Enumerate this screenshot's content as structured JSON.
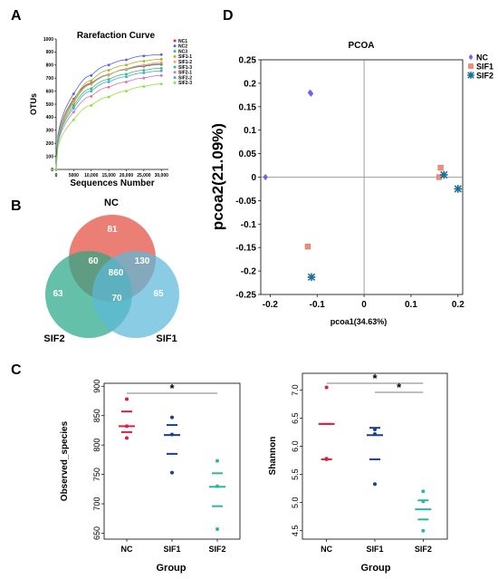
{
  "panels": {
    "A": "A",
    "B": "B",
    "C": "C",
    "D": "D"
  },
  "colors": {
    "NC1": "#e3243b",
    "NC2": "#5060f0",
    "NC3": "#20c0a8",
    "SIF1-1": "#b0b020",
    "SIF1-2": "#f0a070",
    "SIF1-3": "#30c070",
    "SIF2-1": "#e070a0",
    "SIF2-2": "#40a8e0",
    "SIF2-3": "#90e040",
    "venn_nc": "#e8675d",
    "venn_sif2": "#2aa888",
    "venn_sif1": "#5bb8d8",
    "pcoa_nc": "#7b5cf0",
    "pcoa_sif1": "#f08c78",
    "pcoa_sif2": "#1f6f98",
    "grp_nc": "#d9203c",
    "grp_sif1": "#1b3f94",
    "grp_sif2": "#2fb5a0"
  },
  "chart_data": [
    {
      "type": "line",
      "panel": "A",
      "title": "Rarefaction Curve",
      "xlabel": "Sequences Number",
      "ylabel": "OTUs",
      "xlim": [
        0,
        32000
      ],
      "ylim": [
        0,
        1000
      ],
      "x_ticks": [
        0,
        5000,
        10000,
        15000,
        20000,
        25000,
        30000
      ],
      "x_tick_labels": [
        "0",
        "5000",
        "10,000",
        "15,000",
        "20,000",
        "25,000",
        "30,000"
      ],
      "y_ticks": [
        0,
        100,
        200,
        300,
        400,
        500,
        600,
        700,
        800,
        900,
        1000
      ],
      "y_tick_labels": [
        "0",
        "100",
        "200",
        "300",
        "400",
        "500",
        "600",
        "700",
        "800",
        "900",
        "1000"
      ],
      "x": [
        0,
        5000,
        10000,
        15000,
        20000,
        25000,
        30000
      ],
      "series": [
        {
          "name": "NC1",
          "values": [
            0,
            540,
            660,
            725,
            765,
            790,
            805
          ]
        },
        {
          "name": "NC2",
          "values": [
            0,
            580,
            720,
            800,
            840,
            870,
            880
          ]
        },
        {
          "name": "NC3",
          "values": [
            0,
            520,
            655,
            725,
            765,
            795,
            810
          ]
        },
        {
          "name": "SIF1-1",
          "values": [
            0,
            530,
            680,
            760,
            800,
            830,
            845
          ]
        },
        {
          "name": "SIF1-2",
          "values": [
            0,
            510,
            650,
            720,
            770,
            800,
            820
          ]
        },
        {
          "name": "SIF1-3",
          "values": [
            0,
            490,
            620,
            690,
            730,
            760,
            775
          ]
        },
        {
          "name": "SIF2-1",
          "values": [
            0,
            440,
            560,
            630,
            670,
            700,
            720
          ]
        },
        {
          "name": "SIF2-2",
          "values": [
            0,
            470,
            600,
            670,
            710,
            740,
            755
          ]
        },
        {
          "name": "SIF2-3",
          "values": [
            0,
            380,
            490,
            555,
            600,
            635,
            655
          ]
        }
      ]
    },
    {
      "type": "venn",
      "panel": "B",
      "sets": [
        "NC",
        "SIF2",
        "SIF1"
      ],
      "regions": {
        "NC_only": "81",
        "SIF2_only": "63",
        "SIF1_only": "65",
        "NC_SIF2": "60",
        "NC_SIF1": "130",
        "SIF2_SIF1": "70",
        "all": "860"
      }
    },
    {
      "type": "scatter",
      "panel": "D",
      "title": "PCOA",
      "xlabel": "pcoa1(34.63%)",
      "ylabel": "pcoa2(21.09%)",
      "xlim": [
        -0.22,
        0.21
      ],
      "ylim": [
        -0.25,
        0.25
      ],
      "x_ticks": [
        -0.2,
        -0.1,
        0,
        0.1,
        0.2
      ],
      "x_tick_labels": [
        "-0.2",
        "-0.1",
        "0",
        "0.1",
        "0.2"
      ],
      "y_ticks": [
        0.25,
        0.2,
        0.15,
        0.1,
        0.05,
        0,
        -0.05,
        -0.1,
        -0.15,
        -0.2,
        -0.25
      ],
      "y_tick_labels": [
        "0.25",
        "0.2",
        "0.15",
        "0.1",
        "0.05",
        "0",
        "-0.05",
        "-0.1",
        "-0.15",
        "-0.2",
        "-0.25"
      ],
      "legend_position": "top-right",
      "series": [
        {
          "name": "NC",
          "shape": "diamond",
          "color": "#7b5cf0",
          "points": [
            [
              -0.21,
              0.0
            ],
            [
              -0.115,
              0.18
            ],
            [
              -0.113,
              0.178
            ]
          ]
        },
        {
          "name": "SIF1",
          "shape": "square",
          "color": "#f08c78",
          "points": [
            [
              -0.12,
              -0.148
            ],
            [
              0.16,
              0.0
            ],
            [
              0.163,
              0.02
            ]
          ]
        },
        {
          "name": "SIF2",
          "shape": "star",
          "color": "#1f6f98",
          "points": [
            [
              -0.112,
              -0.213
            ],
            [
              0.17,
              0.005
            ],
            [
              0.2,
              -0.025
            ]
          ]
        }
      ]
    },
    {
      "type": "scatter",
      "panel": "C1",
      "xlabel": "Group",
      "ylabel": "Observed_species",
      "categories": [
        "NC",
        "SIF1",
        "SIF2"
      ],
      "ylim": [
        640,
        905
      ],
      "y_ticks": [
        650,
        700,
        750,
        800,
        850,
        900
      ],
      "y_tick_labels": [
        "650",
        "700",
        "750",
        "800",
        "850",
        "900"
      ],
      "significance": [
        {
          "from": "NC",
          "to": "SIF2",
          "label": "*"
        }
      ],
      "groups": [
        {
          "name": "NC",
          "points": [
            878,
            832,
            812
          ],
          "mean": 832,
          "sd_low": 822,
          "sd_high": 857
        },
        {
          "name": "SIF1",
          "points": [
            847,
            818,
            753
          ],
          "mean": 817,
          "sd_low": 785,
          "sd_high": 834
        },
        {
          "name": "SIF2",
          "points": [
            773,
            730,
            657
          ],
          "mean": 729,
          "sd_low": 696,
          "sd_high": 752
        }
      ]
    },
    {
      "type": "scatter",
      "panel": "C2",
      "xlabel": "Group",
      "ylabel": "Shannon",
      "categories": [
        "NC",
        "SIF1",
        "SIF2"
      ],
      "ylim": [
        4.35,
        7.3
      ],
      "y_ticks": [
        4.5,
        5.0,
        5.5,
        6.0,
        6.5,
        7.0
      ],
      "y_tick_labels": [
        "4.5",
        "5.0",
        "5.5",
        "6.0",
        "6.5",
        "7.0"
      ],
      "significance": [
        {
          "from": "NC",
          "to": "SIF2",
          "label": "*"
        },
        {
          "from": "SIF1",
          "to": "SIF2",
          "label": "*"
        }
      ],
      "groups": [
        {
          "name": "NC",
          "points": [
            7.05,
            5.78,
            5.77
          ],
          "mean": 6.4,
          "sd_low": 5.77,
          "sd_high": 6.4
        },
        {
          "name": "SIF1",
          "points": [
            6.3,
            6.22,
            5.33
          ],
          "mean": 6.2,
          "sd_low": 5.77,
          "sd_high": 6.33
        },
        {
          "name": "SIF2",
          "points": [
            5.2,
            5.02,
            4.5
          ],
          "mean": 4.88,
          "sd_low": 4.7,
          "sd_high": 5.04
        }
      ]
    }
  ]
}
